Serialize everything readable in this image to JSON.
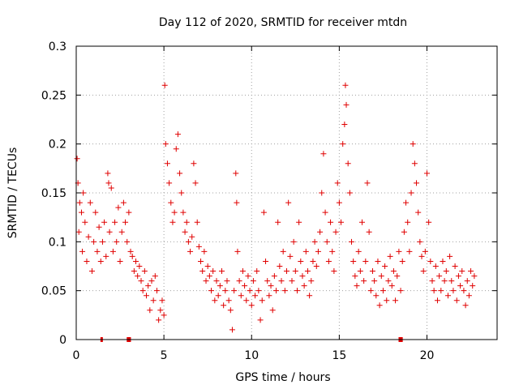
{
  "chart_data": {
    "type": "scatter",
    "title": "Day 112 of 2020, SRMTID for receiver mtdn",
    "xlabel": "GPS time / hours",
    "ylabel": "SRMTID / TECUs",
    "xlim": [
      0,
      24
    ],
    "ylim": [
      0,
      0.3
    ],
    "x_ticks": [
      "0",
      "5",
      "10",
      "15",
      "20"
    ],
    "x_tick_values": [
      0,
      5,
      10,
      15,
      20
    ],
    "y_ticks": [
      "0",
      "0.05",
      "0.1",
      "0.15",
      "0.2",
      "0.25",
      "0.3"
    ],
    "y_tick_values": [
      0,
      0.05,
      0.1,
      0.15,
      0.2,
      0.25,
      0.3
    ],
    "grid": true,
    "marker": "+",
    "series_color": "#e00000",
    "gap_markers_hours": [
      1.45,
      2.95,
      3.05,
      18.45,
      18.55
    ],
    "series": [
      {
        "name": "SRMTID",
        "points": [
          [
            0.05,
            0.185
          ],
          [
            0.1,
            0.16
          ],
          [
            0.15,
            0.11
          ],
          [
            0.2,
            0.14
          ],
          [
            0.3,
            0.13
          ],
          [
            0.35,
            0.09
          ],
          [
            0.4,
            0.15
          ],
          [
            0.5,
            0.12
          ],
          [
            0.6,
            0.08
          ],
          [
            0.7,
            0.105
          ],
          [
            0.8,
            0.14
          ],
          [
            0.9,
            0.07
          ],
          [
            1.0,
            0.1
          ],
          [
            1.1,
            0.13
          ],
          [
            1.2,
            0.09
          ],
          [
            1.3,
            0.115
          ],
          [
            1.4,
            0.08
          ],
          [
            1.5,
            0.1
          ],
          [
            1.6,
            0.12
          ],
          [
            1.7,
            0.085
          ],
          [
            1.8,
            0.17
          ],
          [
            1.85,
            0.16
          ],
          [
            1.9,
            0.11
          ],
          [
            2.0,
            0.155
          ],
          [
            2.1,
            0.09
          ],
          [
            2.2,
            0.12
          ],
          [
            2.3,
            0.1
          ],
          [
            2.4,
            0.135
          ],
          [
            2.5,
            0.08
          ],
          [
            2.6,
            0.11
          ],
          [
            2.7,
            0.14
          ],
          [
            2.8,
            0.12
          ],
          [
            2.9,
            0.1
          ],
          [
            3.0,
            0.13
          ],
          [
            3.1,
            0.09
          ],
          [
            3.2,
            0.085
          ],
          [
            3.3,
            0.07
          ],
          [
            3.4,
            0.08
          ],
          [
            3.5,
            0.065
          ],
          [
            3.6,
            0.075
          ],
          [
            3.7,
            0.06
          ],
          [
            3.8,
            0.05
          ],
          [
            3.9,
            0.07
          ],
          [
            4.0,
            0.045
          ],
          [
            4.1,
            0.055
          ],
          [
            4.2,
            0.03
          ],
          [
            4.3,
            0.06
          ],
          [
            4.4,
            0.04
          ],
          [
            4.5,
            0.065
          ],
          [
            4.6,
            0.05
          ],
          [
            4.7,
            0.02
          ],
          [
            4.8,
            0.03
          ],
          [
            4.9,
            0.04
          ],
          [
            5.0,
            0.025
          ],
          [
            5.05,
            0.26
          ],
          [
            5.1,
            0.2
          ],
          [
            5.2,
            0.18
          ],
          [
            5.3,
            0.16
          ],
          [
            5.4,
            0.14
          ],
          [
            5.5,
            0.12
          ],
          [
            5.6,
            0.13
          ],
          [
            5.7,
            0.195
          ],
          [
            5.8,
            0.21
          ],
          [
            5.9,
            0.17
          ],
          [
            6.0,
            0.15
          ],
          [
            6.1,
            0.13
          ],
          [
            6.2,
            0.11
          ],
          [
            6.3,
            0.12
          ],
          [
            6.4,
            0.1
          ],
          [
            6.5,
            0.09
          ],
          [
            6.6,
            0.105
          ],
          [
            6.7,
            0.18
          ],
          [
            6.8,
            0.16
          ],
          [
            6.9,
            0.12
          ],
          [
            7.0,
            0.095
          ],
          [
            7.1,
            0.08
          ],
          [
            7.2,
            0.07
          ],
          [
            7.3,
            0.09
          ],
          [
            7.4,
            0.06
          ],
          [
            7.5,
            0.075
          ],
          [
            7.6,
            0.065
          ],
          [
            7.7,
            0.05
          ],
          [
            7.8,
            0.07
          ],
          [
            7.9,
            0.04
          ],
          [
            8.0,
            0.06
          ],
          [
            8.1,
            0.045
          ],
          [
            8.2,
            0.055
          ],
          [
            8.3,
            0.07
          ],
          [
            8.4,
            0.035
          ],
          [
            8.5,
            0.05
          ],
          [
            8.6,
            0.06
          ],
          [
            8.7,
            0.04
          ],
          [
            8.8,
            0.03
          ],
          [
            8.9,
            0.01
          ],
          [
            9.0,
            0.05
          ],
          [
            9.1,
            0.17
          ],
          [
            9.15,
            0.14
          ],
          [
            9.2,
            0.09
          ],
          [
            9.3,
            0.06
          ],
          [
            9.4,
            0.045
          ],
          [
            9.5,
            0.07
          ],
          [
            9.6,
            0.055
          ],
          [
            9.7,
            0.04
          ],
          [
            9.8,
            0.065
          ],
          [
            9.9,
            0.05
          ],
          [
            10.0,
            0.035
          ],
          [
            10.1,
            0.06
          ],
          [
            10.2,
            0.045
          ],
          [
            10.3,
            0.07
          ],
          [
            10.4,
            0.05
          ],
          [
            10.5,
            0.02
          ],
          [
            10.6,
            0.04
          ],
          [
            10.7,
            0.13
          ],
          [
            10.8,
            0.08
          ],
          [
            10.9,
            0.06
          ],
          [
            11.0,
            0.045
          ],
          [
            11.1,
            0.055
          ],
          [
            11.2,
            0.03
          ],
          [
            11.3,
            0.065
          ],
          [
            11.4,
            0.05
          ],
          [
            11.5,
            0.12
          ],
          [
            11.6,
            0.075
          ],
          [
            11.7,
            0.06
          ],
          [
            11.8,
            0.09
          ],
          [
            11.9,
            0.05
          ],
          [
            12.0,
            0.07
          ],
          [
            12.1,
            0.14
          ],
          [
            12.2,
            0.085
          ],
          [
            12.3,
            0.06
          ],
          [
            12.4,
            0.1
          ],
          [
            12.5,
            0.07
          ],
          [
            12.6,
            0.05
          ],
          [
            12.7,
            0.12
          ],
          [
            12.8,
            0.08
          ],
          [
            12.9,
            0.065
          ],
          [
            13.0,
            0.055
          ],
          [
            13.1,
            0.09
          ],
          [
            13.2,
            0.07
          ],
          [
            13.3,
            0.045
          ],
          [
            13.4,
            0.06
          ],
          [
            13.5,
            0.08
          ],
          [
            13.6,
            0.1
          ],
          [
            13.7,
            0.075
          ],
          [
            13.8,
            0.09
          ],
          [
            13.9,
            0.11
          ],
          [
            14.0,
            0.15
          ],
          [
            14.1,
            0.19
          ],
          [
            14.2,
            0.13
          ],
          [
            14.3,
            0.1
          ],
          [
            14.4,
            0.08
          ],
          [
            14.5,
            0.12
          ],
          [
            14.6,
            0.09
          ],
          [
            14.7,
            0.07
          ],
          [
            14.8,
            0.11
          ],
          [
            14.9,
            0.16
          ],
          [
            15.0,
            0.14
          ],
          [
            15.1,
            0.12
          ],
          [
            15.2,
            0.2
          ],
          [
            15.3,
            0.22
          ],
          [
            15.35,
            0.26
          ],
          [
            15.4,
            0.24
          ],
          [
            15.5,
            0.18
          ],
          [
            15.6,
            0.15
          ],
          [
            15.7,
            0.1
          ],
          [
            15.8,
            0.08
          ],
          [
            15.9,
            0.065
          ],
          [
            16.0,
            0.055
          ],
          [
            16.1,
            0.09
          ],
          [
            16.2,
            0.07
          ],
          [
            16.3,
            0.12
          ],
          [
            16.4,
            0.06
          ],
          [
            16.5,
            0.08
          ],
          [
            16.6,
            0.16
          ],
          [
            16.7,
            0.11
          ],
          [
            16.8,
            0.05
          ],
          [
            16.9,
            0.07
          ],
          [
            17.0,
            0.06
          ],
          [
            17.1,
            0.045
          ],
          [
            17.2,
            0.08
          ],
          [
            17.3,
            0.035
          ],
          [
            17.4,
            0.065
          ],
          [
            17.5,
            0.05
          ],
          [
            17.6,
            0.075
          ],
          [
            17.7,
            0.04
          ],
          [
            17.8,
            0.06
          ],
          [
            17.9,
            0.085
          ],
          [
            18.0,
            0.055
          ],
          [
            18.1,
            0.07
          ],
          [
            18.2,
            0.04
          ],
          [
            18.3,
            0.065
          ],
          [
            18.4,
            0.09
          ],
          [
            18.5,
            0.05
          ],
          [
            18.6,
            0.08
          ],
          [
            18.7,
            0.11
          ],
          [
            18.8,
            0.14
          ],
          [
            18.9,
            0.12
          ],
          [
            19.0,
            0.09
          ],
          [
            19.1,
            0.15
          ],
          [
            19.2,
            0.2
          ],
          [
            19.3,
            0.18
          ],
          [
            19.4,
            0.16
          ],
          [
            19.5,
            0.13
          ],
          [
            19.6,
            0.1
          ],
          [
            19.7,
            0.085
          ],
          [
            19.8,
            0.07
          ],
          [
            19.9,
            0.09
          ],
          [
            20.0,
            0.17
          ],
          [
            20.1,
            0.12
          ],
          [
            20.2,
            0.08
          ],
          [
            20.3,
            0.06
          ],
          [
            20.4,
            0.05
          ],
          [
            20.5,
            0.075
          ],
          [
            20.6,
            0.04
          ],
          [
            20.7,
            0.065
          ],
          [
            20.8,
            0.05
          ],
          [
            20.9,
            0.08
          ],
          [
            21.0,
            0.06
          ],
          [
            21.1,
            0.07
          ],
          [
            21.2,
            0.045
          ],
          [
            21.3,
            0.085
          ],
          [
            21.4,
            0.06
          ],
          [
            21.5,
            0.05
          ],
          [
            21.6,
            0.075
          ],
          [
            21.7,
            0.04
          ],
          [
            21.8,
            0.065
          ],
          [
            21.9,
            0.055
          ],
          [
            22.0,
            0.07
          ],
          [
            22.1,
            0.05
          ],
          [
            22.2,
            0.035
          ],
          [
            22.3,
            0.06
          ],
          [
            22.4,
            0.045
          ],
          [
            22.5,
            0.07
          ],
          [
            22.6,
            0.055
          ],
          [
            22.7,
            0.065
          ]
        ]
      }
    ]
  }
}
